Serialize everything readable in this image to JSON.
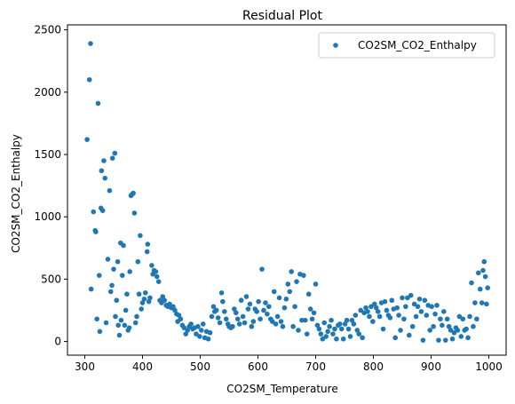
{
  "chart_data": {
    "type": "scatter",
    "title": "Residual Plot",
    "xlabel": "CO2SM_Temperature",
    "ylabel": "CO2SM_CO2_Enthalpy",
    "xlim": [
      270,
      1030
    ],
    "ylim": [
      -110,
      2540
    ],
    "xticks": [
      300,
      400,
      500,
      600,
      700,
      800,
      900,
      1000
    ],
    "yticks": [
      0,
      500,
      1000,
      1500,
      2000,
      2500
    ],
    "grid": false,
    "legend_position": "top-right",
    "point_color": "#1f77b4",
    "series": [
      {
        "name": "CO2SM_CO2_Enthalpy",
        "points": [
          [
            304,
            1620
          ],
          [
            308,
            2100
          ],
          [
            310,
            2390
          ],
          [
            311,
            420
          ],
          [
            315,
            1040
          ],
          [
            318,
            890
          ],
          [
            319,
            880
          ],
          [
            321,
            180
          ],
          [
            323,
            1910
          ],
          [
            325,
            530
          ],
          [
            326,
            80
          ],
          [
            328,
            1070
          ],
          [
            329,
            1370
          ],
          [
            331,
            1050
          ],
          [
            333,
            1450
          ],
          [
            335,
            1310
          ],
          [
            337,
            150
          ],
          [
            340,
            660
          ],
          [
            343,
            1210
          ],
          [
            345,
            400
          ],
          [
            347,
            450
          ],
          [
            348,
            1470
          ],
          [
            350,
            580
          ],
          [
            352,
            1510
          ],
          [
            353,
            200
          ],
          [
            355,
            330
          ],
          [
            357,
            640
          ],
          [
            358,
            130
          ],
          [
            360,
            50
          ],
          [
            362,
            790
          ],
          [
            363,
            170
          ],
          [
            365,
            530
          ],
          [
            367,
            770
          ],
          [
            369,
            130
          ],
          [
            371,
            250
          ],
          [
            373,
            380
          ],
          [
            375,
            90
          ],
          [
            377,
            110
          ],
          [
            378,
            560
          ],
          [
            380,
            1170
          ],
          [
            382,
            1180
          ],
          [
            384,
            1190
          ],
          [
            386,
            1030
          ],
          [
            388,
            150
          ],
          [
            390,
            200
          ],
          [
            392,
            640
          ],
          [
            394,
            380
          ],
          [
            396,
            850
          ],
          [
            398,
            260
          ],
          [
            400,
            310
          ],
          [
            403,
            340
          ],
          [
            405,
            390
          ],
          [
            408,
            720
          ],
          [
            409,
            780
          ],
          [
            411,
            320
          ],
          [
            413,
            350
          ],
          [
            416,
            610
          ],
          [
            418,
            540
          ],
          [
            420,
            570
          ],
          [
            423,
            560
          ],
          [
            425,
            520
          ],
          [
            428,
            480
          ],
          [
            430,
            330
          ],
          [
            433,
            310
          ],
          [
            435,
            360
          ],
          [
            438,
            330
          ],
          [
            441,
            290
          ],
          [
            444,
            280
          ],
          [
            447,
            300
          ],
          [
            450,
            270
          ],
          [
            453,
            280
          ],
          [
            456,
            250
          ],
          [
            459,
            220
          ],
          [
            461,
            160
          ],
          [
            463,
            210
          ],
          [
            466,
            180
          ],
          [
            469,
            130
          ],
          [
            472,
            110
          ],
          [
            475,
            60
          ],
          [
            478,
            90
          ],
          [
            481,
            120
          ],
          [
            484,
            140
          ],
          [
            487,
            100
          ],
          [
            490,
            110
          ],
          [
            493,
            60
          ],
          [
            496,
            120
          ],
          [
            499,
            40
          ],
          [
            502,
            90
          ],
          [
            505,
            140
          ],
          [
            508,
            30
          ],
          [
            511,
            80
          ],
          [
            514,
            20
          ],
          [
            517,
            70
          ],
          [
            520,
            200
          ],
          [
            523,
            280
          ],
          [
            525,
            240
          ],
          [
            528,
            250
          ],
          [
            531,
            190
          ],
          [
            534,
            150
          ],
          [
            537,
            390
          ],
          [
            539,
            320
          ],
          [
            542,
            240
          ],
          [
            545,
            180
          ],
          [
            548,
            140
          ],
          [
            550,
            120
          ],
          [
            553,
            110
          ],
          [
            556,
            120
          ],
          [
            559,
            260
          ],
          [
            562,
            230
          ],
          [
            565,
            180
          ],
          [
            568,
            140
          ],
          [
            571,
            330
          ],
          [
            574,
            200
          ],
          [
            577,
            150
          ],
          [
            580,
            360
          ],
          [
            583,
            260
          ],
          [
            586,
            300
          ],
          [
            589,
            120
          ],
          [
            592,
            160
          ],
          [
            595,
            260
          ],
          [
            598,
            240
          ],
          [
            601,
            320
          ],
          [
            604,
            180
          ],
          [
            607,
            580
          ],
          [
            610,
            250
          ],
          [
            613,
            310
          ],
          [
            616,
            220
          ],
          [
            619,
            280
          ],
          [
            622,
            180
          ],
          [
            625,
            160
          ],
          [
            628,
            400
          ],
          [
            631,
            140
          ],
          [
            634,
            200
          ],
          [
            637,
            350
          ],
          [
            640,
            160
          ],
          [
            643,
            120
          ],
          [
            646,
            270
          ],
          [
            649,
            340
          ],
          [
            652,
            460
          ],
          [
            655,
            400
          ],
          [
            658,
            560
          ],
          [
            661,
            120
          ],
          [
            664,
            280
          ],
          [
            667,
            480
          ],
          [
            670,
            90
          ],
          [
            673,
            540
          ],
          [
            676,
            170
          ],
          [
            679,
            530
          ],
          [
            682,
            170
          ],
          [
            685,
            60
          ],
          [
            688,
            380
          ],
          [
            691,
            260
          ],
          [
            694,
            180
          ],
          [
            697,
            230
          ],
          [
            700,
            460
          ],
          [
            703,
            130
          ],
          [
            706,
            100
          ],
          [
            709,
            60
          ],
          [
            712,
            20
          ],
          [
            715,
            150
          ],
          [
            718,
            40
          ],
          [
            721,
            80
          ],
          [
            724,
            120
          ],
          [
            727,
            170
          ],
          [
            730,
            60
          ],
          [
            733,
            100
          ],
          [
            736,
            20
          ],
          [
            739,
            130
          ],
          [
            742,
            140
          ],
          [
            745,
            100
          ],
          [
            748,
            20
          ],
          [
            751,
            140
          ],
          [
            754,
            170
          ],
          [
            757,
            100
          ],
          [
            760,
            40
          ],
          [
            763,
            170
          ],
          [
            766,
            140
          ],
          [
            769,
            210
          ],
          [
            772,
            90
          ],
          [
            775,
            60
          ],
          [
            778,
            250
          ],
          [
            781,
            30
          ],
          [
            784,
            230
          ],
          [
            787,
            270
          ],
          [
            790,
            240
          ],
          [
            793,
            200
          ],
          [
            796,
            280
          ],
          [
            799,
            160
          ],
          [
            802,
            300
          ],
          [
            805,
            270
          ],
          [
            808,
            240
          ],
          [
            811,
            200
          ],
          [
            814,
            310
          ],
          [
            817,
            100
          ],
          [
            820,
            320
          ],
          [
            823,
            250
          ],
          [
            826,
            210
          ],
          [
            829,
            190
          ],
          [
            832,
            330
          ],
          [
            835,
            260
          ],
          [
            838,
            30
          ],
          [
            841,
            270
          ],
          [
            844,
            210
          ],
          [
            847,
            90
          ],
          [
            850,
            350
          ],
          [
            853,
            180
          ],
          [
            856,
            280
          ],
          [
            859,
            350
          ],
          [
            862,
            50
          ],
          [
            865,
            370
          ],
          [
            868,
            120
          ],
          [
            871,
            300
          ],
          [
            874,
            200
          ],
          [
            877,
            280
          ],
          [
            880,
            340
          ],
          [
            883,
            240
          ],
          [
            886,
            10
          ],
          [
            889,
            330
          ],
          [
            892,
            210
          ],
          [
            895,
            290
          ],
          [
            898,
            90
          ],
          [
            901,
            280
          ],
          [
            904,
            120
          ],
          [
            907,
            220
          ],
          [
            910,
            290
          ],
          [
            913,
            10
          ],
          [
            916,
            180
          ],
          [
            919,
            130
          ],
          [
            922,
            240
          ],
          [
            925,
            10
          ],
          [
            928,
            180
          ],
          [
            931,
            120
          ],
          [
            934,
            90
          ],
          [
            937,
            20
          ],
          [
            940,
            70
          ],
          [
            943,
            110
          ],
          [
            946,
            90
          ],
          [
            949,
            200
          ],
          [
            952,
            40
          ],
          [
            955,
            180
          ],
          [
            958,
            90
          ],
          [
            961,
            100
          ],
          [
            964,
            30
          ],
          [
            967,
            200
          ],
          [
            970,
            470
          ],
          [
            973,
            120
          ],
          [
            976,
            310
          ],
          [
            979,
            180
          ],
          [
            982,
            550
          ],
          [
            985,
            420
          ],
          [
            988,
            310
          ],
          [
            990,
            570
          ],
          [
            992,
            640
          ],
          [
            994,
            520
          ],
          [
            996,
            300
          ],
          [
            998,
            430
          ]
        ]
      }
    ]
  }
}
